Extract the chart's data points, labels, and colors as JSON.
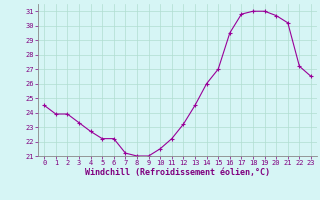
{
  "x": [
    0,
    1,
    2,
    3,
    4,
    5,
    6,
    7,
    8,
    9,
    10,
    11,
    12,
    13,
    14,
    15,
    16,
    17,
    18,
    19,
    20,
    21,
    22,
    23
  ],
  "y": [
    24.5,
    23.9,
    23.9,
    23.3,
    22.7,
    22.2,
    22.2,
    21.2,
    21.0,
    21.0,
    21.5,
    22.2,
    23.2,
    24.5,
    26.0,
    27.0,
    29.5,
    30.8,
    31.0,
    31.0,
    30.7,
    30.2,
    27.2,
    26.5
  ],
  "line_color": "#990099",
  "marker": "+",
  "marker_color": "#990099",
  "bg_color": "#d6f5f5",
  "grid_color": "#b0ddd0",
  "xlabel": "Windchill (Refroidissement éolien,°C)",
  "xlim": [
    -0.5,
    23.5
  ],
  "ylim": [
    21,
    31.5
  ],
  "yticks": [
    21,
    22,
    23,
    24,
    25,
    26,
    27,
    28,
    29,
    30,
    31
  ],
  "xticks": [
    0,
    1,
    2,
    3,
    4,
    5,
    6,
    7,
    8,
    9,
    10,
    11,
    12,
    13,
    14,
    15,
    16,
    17,
    18,
    19,
    20,
    21,
    22,
    23
  ],
  "xlabel_color": "#800080",
  "tick_color": "#800080",
  "axis_color": "#800080",
  "spine_color": "#888888",
  "tick_fontsize": 5.0,
  "xlabel_fontsize": 6.0,
  "linewidth": 0.8,
  "markersize": 3.0
}
